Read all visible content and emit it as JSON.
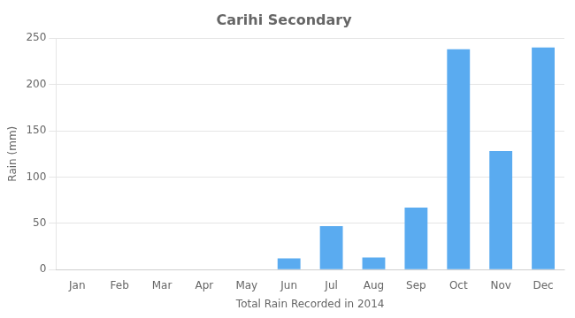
{
  "chart_data": {
    "type": "bar",
    "title": "Carihi Secondary",
    "xlabel": "Total Rain Recorded in 2014",
    "ylabel": "Rain (mm)",
    "categories": [
      "Jan",
      "Feb",
      "Mar",
      "Apr",
      "May",
      "Jun",
      "Jul",
      "Aug",
      "Sep",
      "Oct",
      "Nov",
      "Dec"
    ],
    "values": [
      0,
      0,
      0,
      0,
      0,
      12,
      47,
      13,
      67,
      238,
      128,
      240
    ],
    "color": "#5aabf0",
    "ylim": [
      0,
      250
    ],
    "yticks": [
      0,
      50,
      100,
      150,
      200,
      250
    ],
    "grid": true
  }
}
